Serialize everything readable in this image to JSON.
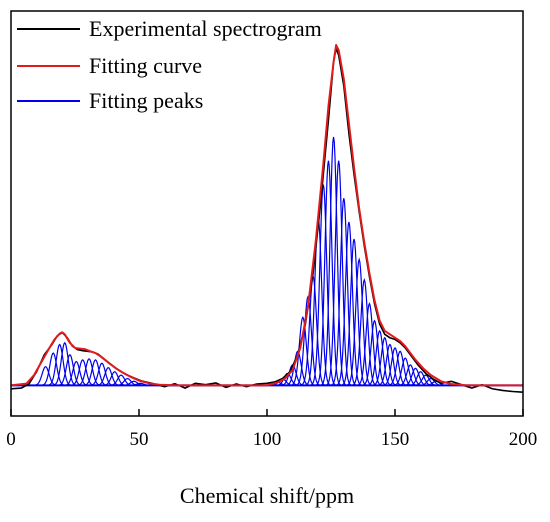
{
  "chart_data": {
    "type": "line",
    "xlabel": "Chemical shift/ppm",
    "ylabel": "",
    "xlim": [
      0,
      200
    ],
    "ylim": [
      -0.09,
      1.1
    ],
    "x_ticks": [
      "0",
      "50",
      "100",
      "150",
      "200"
    ],
    "y_ticks": [],
    "grid": false,
    "legend_position": "top-left",
    "series": [
      {
        "name": "Experimental spectrogram",
        "color": "#000000",
        "points": [
          [
            0,
            -0.01
          ],
          [
            4,
            -0.008
          ],
          [
            7,
            0.004
          ],
          [
            10,
            0.04
          ],
          [
            13,
            0.09
          ],
          [
            16,
            0.12
          ],
          [
            18,
            0.145
          ],
          [
            20,
            0.155
          ],
          [
            22,
            0.14
          ],
          [
            24,
            0.115
          ],
          [
            26,
            0.105
          ],
          [
            28,
            0.102
          ],
          [
            30,
            0.1
          ],
          [
            32,
            0.098
          ],
          [
            34,
            0.092
          ],
          [
            36,
            0.08
          ],
          [
            38,
            0.068
          ],
          [
            40,
            0.056
          ],
          [
            42,
            0.045
          ],
          [
            45,
            0.032
          ],
          [
            48,
            0.022
          ],
          [
            51,
            0.013
          ],
          [
            55,
            0.006
          ],
          [
            60,
            -0.004
          ],
          [
            64,
            0.005
          ],
          [
            68,
            -0.008
          ],
          [
            72,
            0.006
          ],
          [
            76,
            0.002
          ],
          [
            80,
            0.007
          ],
          [
            84,
            -0.006
          ],
          [
            88,
            0.004
          ],
          [
            92,
            -0.004
          ],
          [
            96,
            0.004
          ],
          [
            100,
            0.006
          ],
          [
            103,
            0.01
          ],
          [
            106,
            0.02
          ],
          [
            109,
            0.04
          ],
          [
            112,
            0.09
          ],
          [
            115,
            0.18
          ],
          [
            118,
            0.33
          ],
          [
            121,
            0.54
          ],
          [
            124,
            0.78
          ],
          [
            126,
            0.95
          ],
          [
            127,
            0.99
          ],
          [
            128,
            0.97
          ],
          [
            130,
            0.88
          ],
          [
            132,
            0.74
          ],
          [
            134,
            0.62
          ],
          [
            136,
            0.51
          ],
          [
            138,
            0.41
          ],
          [
            140,
            0.32
          ],
          [
            142,
            0.24
          ],
          [
            144,
            0.18
          ],
          [
            146,
            0.15
          ],
          [
            148,
            0.14
          ],
          [
            150,
            0.135
          ],
          [
            152,
            0.125
          ],
          [
            154,
            0.11
          ],
          [
            156,
            0.09
          ],
          [
            159,
            0.06
          ],
          [
            162,
            0.035
          ],
          [
            165,
            0.018
          ],
          [
            168,
            0.006
          ],
          [
            172,
            0.012
          ],
          [
            176,
            0.002
          ],
          [
            180,
            -0.008
          ],
          [
            184,
            0.002
          ],
          [
            188,
            -0.01
          ],
          [
            192,
            -0.015
          ],
          [
            196,
            -0.018
          ],
          [
            200,
            -0.02
          ]
        ]
      },
      {
        "name": "Fitting curve",
        "color": "#e31a1c",
        "points": [
          [
            0,
            0.0
          ],
          [
            6,
            0.005
          ],
          [
            9,
            0.03
          ],
          [
            12,
            0.07
          ],
          [
            15,
            0.11
          ],
          [
            17,
            0.135
          ],
          [
            19,
            0.152
          ],
          [
            20,
            0.156
          ],
          [
            21,
            0.15
          ],
          [
            23,
            0.125
          ],
          [
            25,
            0.11
          ],
          [
            27,
            0.108
          ],
          [
            29,
            0.106
          ],
          [
            31,
            0.1
          ],
          [
            33,
            0.095
          ],
          [
            35,
            0.085
          ],
          [
            37,
            0.073
          ],
          [
            39,
            0.061
          ],
          [
            41,
            0.05
          ],
          [
            44,
            0.036
          ],
          [
            47,
            0.024
          ],
          [
            50,
            0.014
          ],
          [
            54,
            0.006
          ],
          [
            58,
            0.002
          ],
          [
            65,
            0.0
          ],
          [
            100,
            0.0
          ],
          [
            104,
            0.008
          ],
          [
            107,
            0.02
          ],
          [
            110,
            0.045
          ],
          [
            113,
            0.11
          ],
          [
            116,
            0.23
          ],
          [
            119,
            0.42
          ],
          [
            122,
            0.65
          ],
          [
            124,
            0.82
          ],
          [
            126,
            0.95
          ],
          [
            127,
            1.0
          ],
          [
            128,
            0.985
          ],
          [
            130,
            0.9
          ],
          [
            132,
            0.77
          ],
          [
            134,
            0.64
          ],
          [
            136,
            0.52
          ],
          [
            138,
            0.42
          ],
          [
            140,
            0.33
          ],
          [
            142,
            0.25
          ],
          [
            144,
            0.19
          ],
          [
            146,
            0.16
          ],
          [
            148,
            0.15
          ],
          [
            150,
            0.14
          ],
          [
            152,
            0.13
          ],
          [
            154,
            0.115
          ],
          [
            156,
            0.095
          ],
          [
            158,
            0.075
          ],
          [
            161,
            0.05
          ],
          [
            164,
            0.03
          ],
          [
            168,
            0.012
          ],
          [
            172,
            0.004
          ],
          [
            178,
            0.0
          ],
          [
            200,
            0.0
          ]
        ]
      },
      {
        "name": "Fitting peaks",
        "color": "#0000ee",
        "sigma": 1.35,
        "peaks": [
          [
            13.5,
            0.055
          ],
          [
            16.5,
            0.095
          ],
          [
            19,
            0.12
          ],
          [
            21,
            0.125
          ],
          [
            23,
            0.09
          ],
          [
            25.5,
            0.07
          ],
          [
            28,
            0.075
          ],
          [
            30.5,
            0.078
          ],
          [
            33,
            0.075
          ],
          [
            35.5,
            0.065
          ],
          [
            38,
            0.052
          ],
          [
            40.5,
            0.04
          ],
          [
            43,
            0.03
          ],
          [
            45.5,
            0.02
          ],
          [
            48,
            0.012
          ],
          [
            50.5,
            0.006
          ],
          [
            104,
            0.01
          ],
          [
            106,
            0.02
          ],
          [
            108,
            0.035
          ],
          [
            110,
            0.06
          ],
          [
            112,
            0.1
          ],
          [
            114,
            0.2
          ],
          [
            116,
            0.26
          ],
          [
            118,
            0.32
          ],
          [
            120,
            0.49
          ],
          [
            122,
            0.59
          ],
          [
            124,
            0.66
          ],
          [
            126,
            0.73
          ],
          [
            128,
            0.66
          ],
          [
            130,
            0.55
          ],
          [
            132,
            0.48
          ],
          [
            134,
            0.43
          ],
          [
            136,
            0.37
          ],
          [
            138,
            0.31
          ],
          [
            140,
            0.24
          ],
          [
            142,
            0.19
          ],
          [
            144,
            0.16
          ],
          [
            146,
            0.14
          ],
          [
            148,
            0.12
          ],
          [
            150,
            0.11
          ],
          [
            152,
            0.1
          ],
          [
            154,
            0.08
          ],
          [
            156,
            0.06
          ],
          [
            158,
            0.05
          ],
          [
            160,
            0.04
          ],
          [
            162,
            0.03
          ],
          [
            164,
            0.02
          ],
          [
            166,
            0.012
          ]
        ]
      }
    ]
  }
}
